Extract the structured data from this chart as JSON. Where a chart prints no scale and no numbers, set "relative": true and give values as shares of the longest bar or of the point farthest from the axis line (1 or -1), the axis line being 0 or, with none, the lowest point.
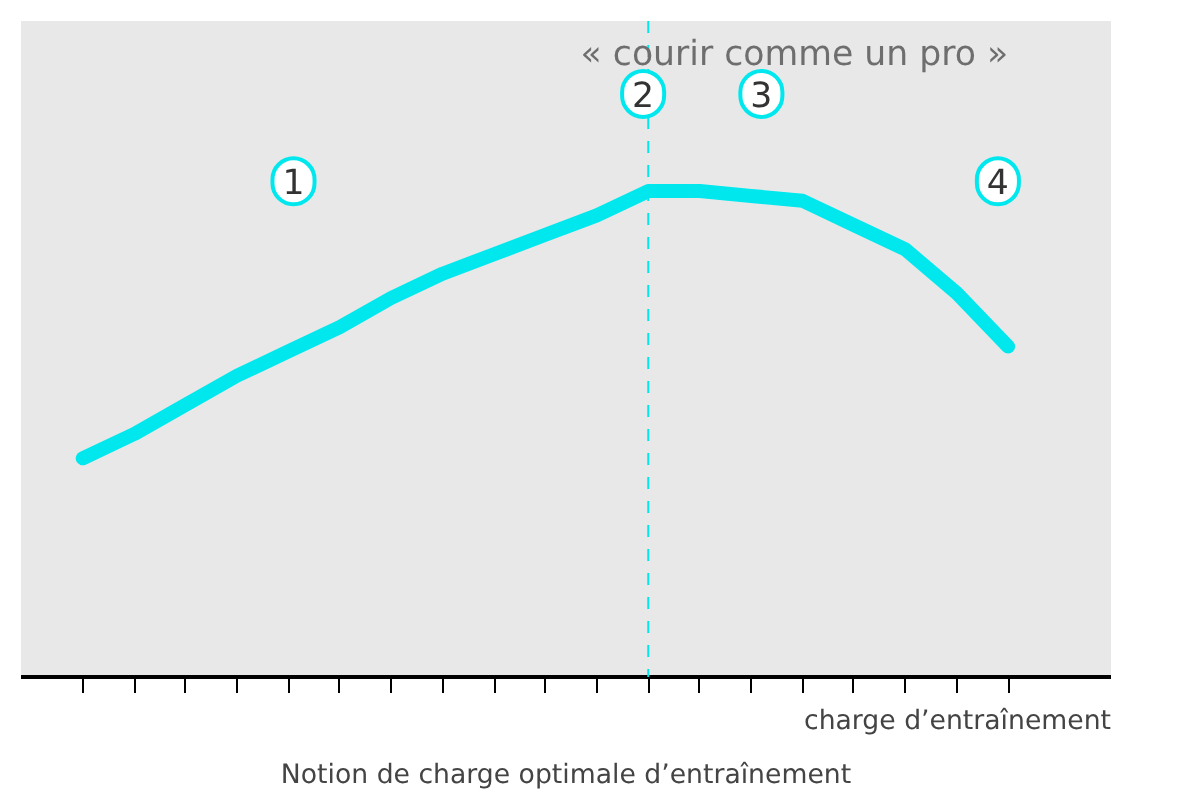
{
  "chart_data": {
    "type": "line",
    "relative": true,
    "title": "Notion de charge optimale d’entraînement",
    "xlabel": "charge d’entraînement",
    "categories": [
      null,
      null,
      null,
      null,
      null,
      null,
      null,
      null,
      null,
      null,
      null,
      null,
      null,
      null,
      null,
      null,
      null,
      null,
      null
    ],
    "series": [
      {
        "color": "#00e8ee",
        "values": [
          0.45,
          0.5,
          0.56,
          0.62,
          0.67,
          0.72,
          0.78,
          0.83,
          0.87,
          0.91,
          0.95,
          1.0,
          1.0,
          0.99,
          0.98,
          0.93,
          0.88,
          0.79,
          0.68
        ]
      }
    ],
    "annotations": [
      "« courir comme un pro »",
      "1",
      "2",
      "3",
      "4"
    ],
    "marker": "none",
    "line_style": "solid"
  }
}
